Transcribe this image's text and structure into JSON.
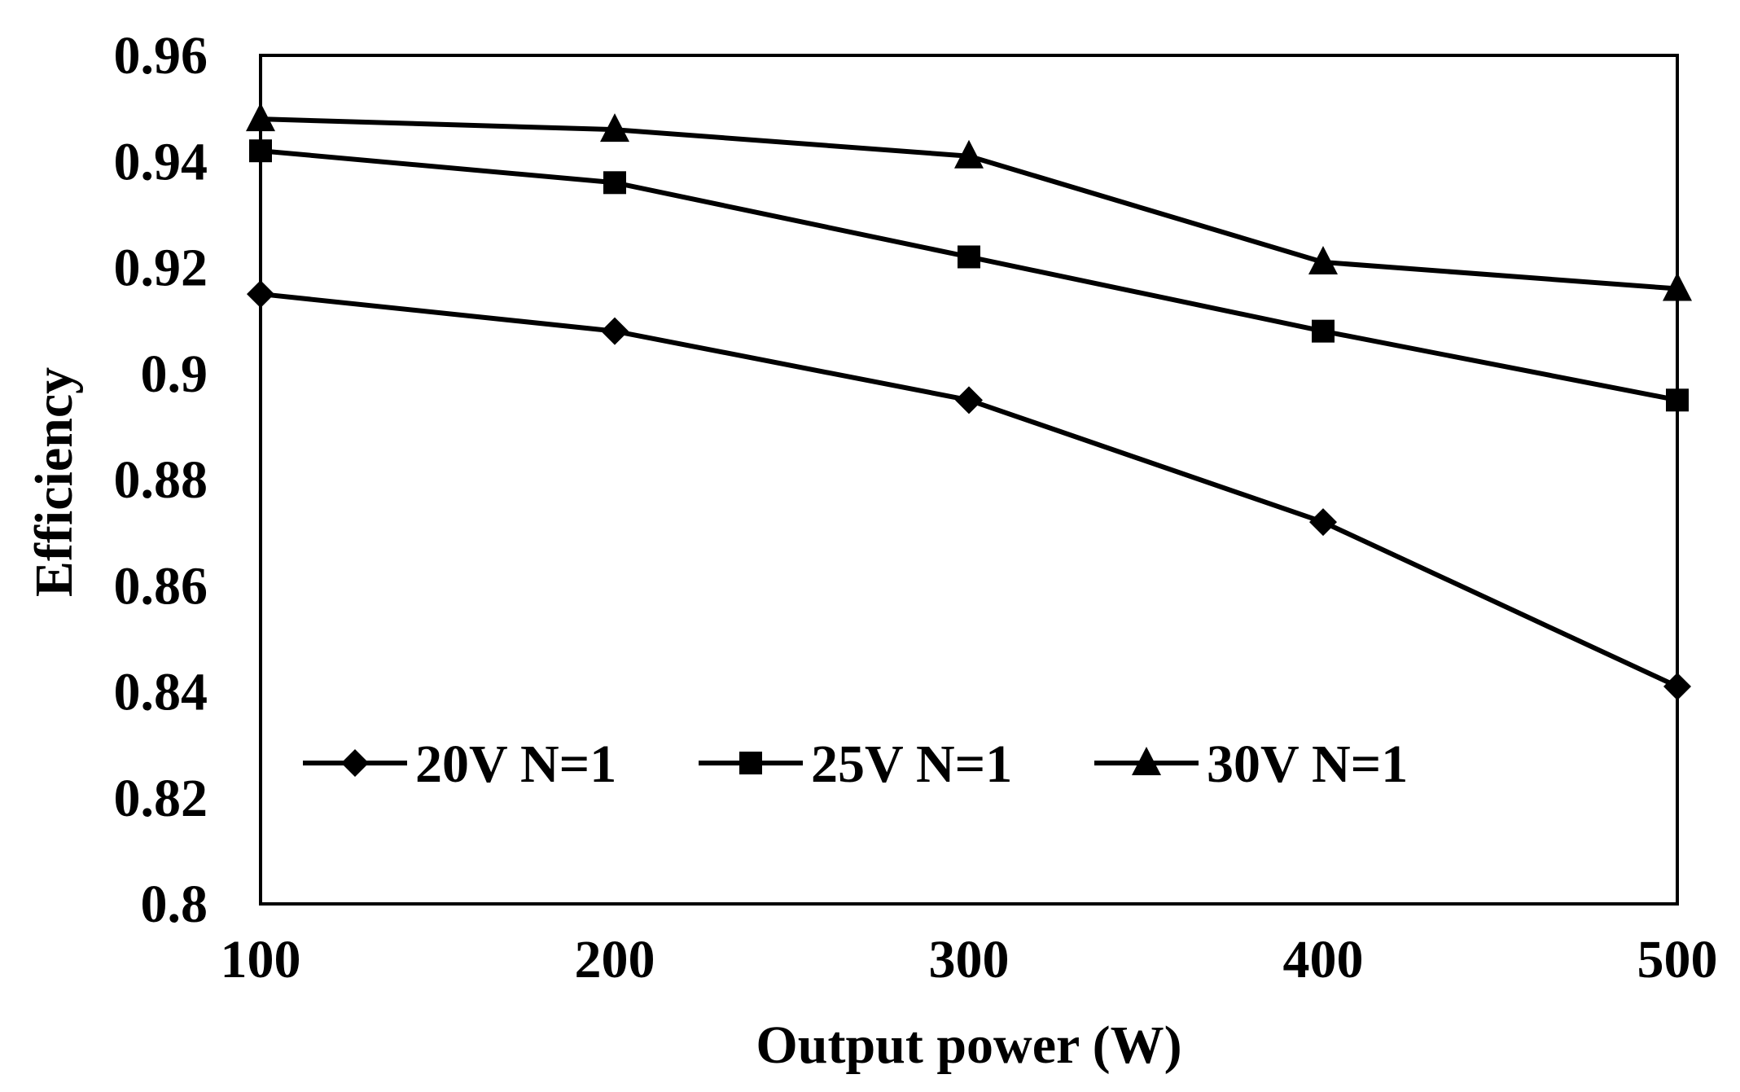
{
  "chart_data": {
    "type": "line",
    "title": "",
    "xlabel": "Output power (W)",
    "ylabel": "Efficiency",
    "x": [
      100,
      200,
      300,
      400,
      500
    ],
    "x_tick_labels": [
      "100",
      "200",
      "300",
      "400",
      "500"
    ],
    "xlim": [
      100,
      500
    ],
    "ylim": [
      0.8,
      0.96
    ],
    "y_ticks": [
      0.8,
      0.82,
      0.84,
      0.86,
      0.88,
      0.9,
      0.92,
      0.94,
      0.96
    ],
    "y_tick_labels": [
      "0.8",
      "0.82",
      "0.84",
      "0.86",
      "0.88",
      "0.9",
      "0.92",
      "0.94",
      "0.96"
    ],
    "grid": false,
    "legend_position": "bottom-inside",
    "series": [
      {
        "name": "20V N=1",
        "marker": "diamond",
        "values": [
          0.915,
          0.908,
          0.895,
          0.872,
          0.841
        ]
      },
      {
        "name": "25V N=1",
        "marker": "square",
        "values": [
          0.942,
          0.936,
          0.922,
          0.908,
          0.895
        ]
      },
      {
        "name": "30V N=1",
        "marker": "triangle",
        "values": [
          0.948,
          0.946,
          0.941,
          0.921,
          0.916
        ]
      }
    ],
    "colors": {
      "line": "#000000",
      "background": "#ffffff"
    }
  }
}
